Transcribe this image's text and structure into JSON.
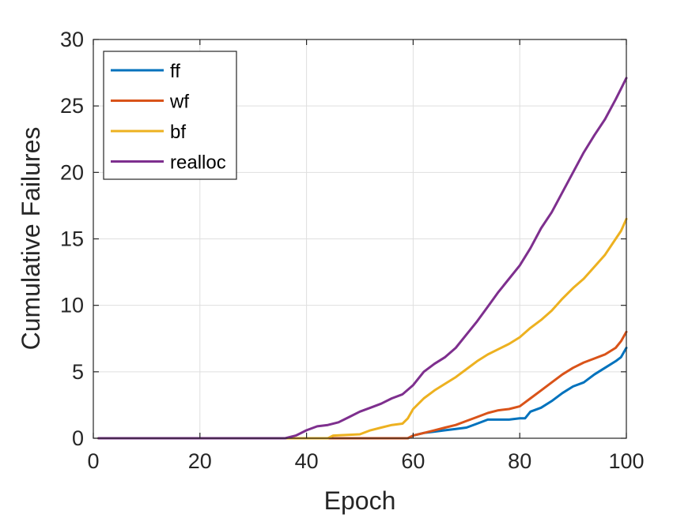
{
  "chart_data": {
    "type": "line",
    "xlabel": "Epoch",
    "ylabel": "Cumulative Failures",
    "xlim": [
      0,
      100
    ],
    "ylim": [
      0,
      30
    ],
    "xticks": [
      0,
      20,
      40,
      60,
      80,
      100
    ],
    "yticks": [
      0,
      5,
      10,
      15,
      20,
      25,
      30
    ],
    "grid": true,
    "legend_position": "top-left",
    "series": [
      {
        "name": "ff",
        "color": "#0072BD",
        "points": [
          [
            1,
            0
          ],
          [
            59,
            0
          ],
          [
            60,
            0.2
          ],
          [
            62,
            0.4
          ],
          [
            64,
            0.5
          ],
          [
            66,
            0.6
          ],
          [
            68,
            0.7
          ],
          [
            70,
            0.8
          ],
          [
            72,
            1.1
          ],
          [
            74,
            1.4
          ],
          [
            76,
            1.4
          ],
          [
            78,
            1.4
          ],
          [
            80,
            1.5
          ],
          [
            81,
            1.5
          ],
          [
            82,
            2.0
          ],
          [
            84,
            2.3
          ],
          [
            86,
            2.8
          ],
          [
            88,
            3.4
          ],
          [
            90,
            3.9
          ],
          [
            92,
            4.2
          ],
          [
            94,
            4.8
          ],
          [
            96,
            5.3
          ],
          [
            98,
            5.8
          ],
          [
            99,
            6.1
          ],
          [
            100,
            6.8
          ]
        ]
      },
      {
        "name": "wf",
        "color": "#D95319",
        "points": [
          [
            1,
            0
          ],
          [
            59,
            0
          ],
          [
            60,
            0.2
          ],
          [
            62,
            0.4
          ],
          [
            64,
            0.6
          ],
          [
            66,
            0.8
          ],
          [
            68,
            1.0
          ],
          [
            70,
            1.3
          ],
          [
            72,
            1.6
          ],
          [
            74,
            1.9
          ],
          [
            76,
            2.1
          ],
          [
            78,
            2.2
          ],
          [
            80,
            2.4
          ],
          [
            82,
            3.0
          ],
          [
            84,
            3.6
          ],
          [
            86,
            4.2
          ],
          [
            88,
            4.8
          ],
          [
            90,
            5.3
          ],
          [
            92,
            5.7
          ],
          [
            94,
            6.0
          ],
          [
            96,
            6.3
          ],
          [
            98,
            6.8
          ],
          [
            99,
            7.3
          ],
          [
            100,
            8.0
          ]
        ]
      },
      {
        "name": "bf",
        "color": "#EDB120",
        "points": [
          [
            1,
            0
          ],
          [
            44,
            0
          ],
          [
            45,
            0.2
          ],
          [
            50,
            0.3
          ],
          [
            52,
            0.6
          ],
          [
            54,
            0.8
          ],
          [
            56,
            1.0
          ],
          [
            58,
            1.1
          ],
          [
            59,
            1.5
          ],
          [
            60,
            2.2
          ],
          [
            62,
            3.0
          ],
          [
            64,
            3.6
          ],
          [
            66,
            4.1
          ],
          [
            68,
            4.6
          ],
          [
            70,
            5.2
          ],
          [
            72,
            5.8
          ],
          [
            74,
            6.3
          ],
          [
            76,
            6.7
          ],
          [
            78,
            7.1
          ],
          [
            80,
            7.6
          ],
          [
            82,
            8.3
          ],
          [
            84,
            8.9
          ],
          [
            86,
            9.6
          ],
          [
            88,
            10.5
          ],
          [
            90,
            11.3
          ],
          [
            92,
            12.0
          ],
          [
            94,
            12.9
          ],
          [
            96,
            13.8
          ],
          [
            98,
            15.0
          ],
          [
            99,
            15.6
          ],
          [
            100,
            16.5
          ]
        ]
      },
      {
        "name": "realloc",
        "color": "#7E2F8E",
        "points": [
          [
            1,
            0
          ],
          [
            36,
            0
          ],
          [
            38,
            0.2
          ],
          [
            40,
            0.6
          ],
          [
            42,
            0.9
          ],
          [
            44,
            1.0
          ],
          [
            46,
            1.2
          ],
          [
            48,
            1.6
          ],
          [
            50,
            2.0
          ],
          [
            52,
            2.3
          ],
          [
            54,
            2.6
          ],
          [
            56,
            3.0
          ],
          [
            58,
            3.3
          ],
          [
            60,
            4.0
          ],
          [
            62,
            5.0
          ],
          [
            64,
            5.6
          ],
          [
            66,
            6.1
          ],
          [
            68,
            6.8
          ],
          [
            70,
            7.8
          ],
          [
            72,
            8.8
          ],
          [
            74,
            9.9
          ],
          [
            76,
            11.0
          ],
          [
            78,
            12.0
          ],
          [
            80,
            13.0
          ],
          [
            82,
            14.3
          ],
          [
            84,
            15.8
          ],
          [
            86,
            17.0
          ],
          [
            88,
            18.5
          ],
          [
            90,
            20.0
          ],
          [
            92,
            21.5
          ],
          [
            94,
            22.8
          ],
          [
            96,
            24.0
          ],
          [
            98,
            25.5
          ],
          [
            99,
            26.3
          ],
          [
            100,
            27.1
          ]
        ]
      }
    ]
  }
}
